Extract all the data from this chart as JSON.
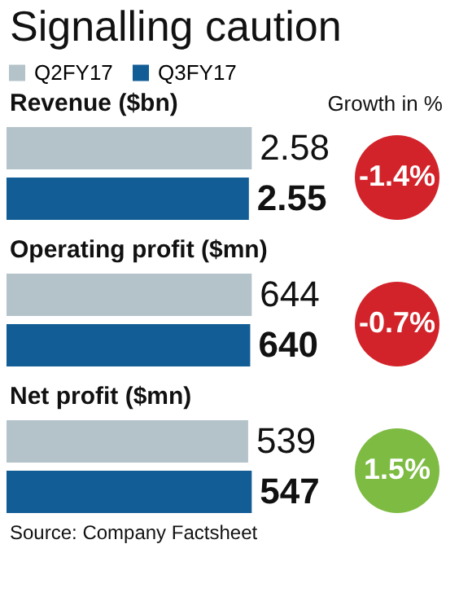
{
  "chart_data": [
    {
      "type": "bar",
      "orientation": "horizontal",
      "title": "Signalling caution",
      "subtitle": "Revenue ($bn)",
      "categories": [
        null
      ],
      "legend": "top left",
      "data_labels": true,
      "series": [
        {
          "name": "Q2FY17",
          "color": "#b4c3ca",
          "values": [
            2.58
          ]
        },
        {
          "name": "Q3FY17",
          "color": "#135d96",
          "values": [
            2.55
          ]
        }
      ],
      "annotations": [
        "Growth in %",
        "-1.4%"
      ]
    },
    {
      "type": "bar",
      "orientation": "horizontal",
      "subtitle": "Operating profit ($mn)",
      "categories": [
        null
      ],
      "data_labels": true,
      "series": [
        {
          "color": "#b4c3ca",
          "values": [
            644
          ]
        },
        {
          "color": "#135d96",
          "values": [
            640
          ]
        }
      ],
      "annotations": [
        "-0.7%"
      ]
    },
    {
      "type": "bar",
      "orientation": "horizontal",
      "subtitle": "Net profit ($mn)",
      "categories": [
        null
      ],
      "data_labels": true,
      "series": [
        {
          "color": "#b4c3ca",
          "values": [
            539
          ]
        },
        {
          "color": "#135d96",
          "values": [
            547
          ]
        }
      ],
      "annotations": [
        "1.5%",
        "Source: Company Factsheet"
      ]
    }
  ]
}
